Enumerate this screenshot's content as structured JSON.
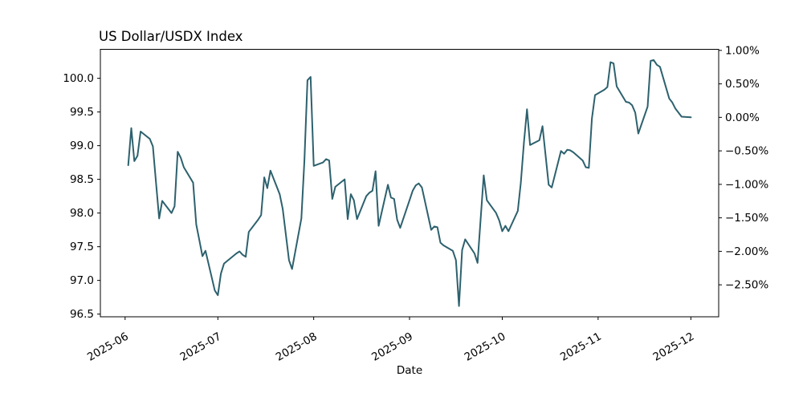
{
  "chart_data": {
    "type": "line",
    "title": "US Dollar/USDX Index",
    "xlabel": "Date",
    "series_name": "USDX Index",
    "line_color": "#2d616e",
    "axis_color": "#000000",
    "background_color": "#ffffff",
    "grid": false,
    "legend": false,
    "ylim": [
      96.46,
      100.43
    ],
    "x_range": [
      "2025-05-24",
      "2025-12-10"
    ],
    "x_ticks": [
      {
        "label": "2025-06",
        "date": "2025-06-01"
      },
      {
        "label": "2025-07",
        "date": "2025-07-01"
      },
      {
        "label": "2025-08",
        "date": "2025-08-01"
      },
      {
        "label": "2025-09",
        "date": "2025-09-01"
      },
      {
        "label": "2025-10",
        "date": "2025-10-01"
      },
      {
        "label": "2025-11",
        "date": "2025-11-01"
      },
      {
        "label": "2025-12",
        "date": "2025-12-01"
      }
    ],
    "y_left_ticks": [
      {
        "label": "100.0",
        "value": 100.0
      },
      {
        "label": "99.5",
        "value": 99.5
      },
      {
        "label": "99.0",
        "value": 99.0
      },
      {
        "label": "98.5",
        "value": 98.5
      },
      {
        "label": "98.0",
        "value": 98.0
      },
      {
        "label": "97.5",
        "value": 97.5
      },
      {
        "label": "97.0",
        "value": 97.0
      },
      {
        "label": "96.5",
        "value": 96.5
      }
    ],
    "y_right_ticks": [
      {
        "label": "1.00%",
        "pct": 1.0
      },
      {
        "label": "0.50%",
        "pct": 0.5
      },
      {
        "label": "0.00%",
        "pct": 0.0
      },
      {
        "label": "−0.50%",
        "pct": -0.5
      },
      {
        "label": "−1.00%",
        "pct": -1.0
      },
      {
        "label": "−1.50%",
        "pct": -1.5
      },
      {
        "label": "−2.00%",
        "pct": -2.0
      },
      {
        "label": "−2.50%",
        "pct": -2.5
      }
    ],
    "dates": [
      "2025-06-02",
      "2025-06-03",
      "2025-06-04",
      "2025-06-05",
      "2025-06-06",
      "2025-06-09",
      "2025-06-10",
      "2025-06-11",
      "2025-06-12",
      "2025-06-13",
      "2025-06-16",
      "2025-06-17",
      "2025-06-18",
      "2025-06-19",
      "2025-06-20",
      "2025-06-23",
      "2025-06-24",
      "2025-06-25",
      "2025-06-26",
      "2025-06-27",
      "2025-06-30",
      "2025-07-01",
      "2025-07-02",
      "2025-07-03",
      "2025-07-07",
      "2025-07-08",
      "2025-07-09",
      "2025-07-10",
      "2025-07-11",
      "2025-07-14",
      "2025-07-15",
      "2025-07-16",
      "2025-07-17",
      "2025-07-18",
      "2025-07-21",
      "2025-07-22",
      "2025-07-23",
      "2025-07-24",
      "2025-07-25",
      "2025-07-28",
      "2025-07-29",
      "2025-07-30",
      "2025-07-31",
      "2025-08-01",
      "2025-08-04",
      "2025-08-05",
      "2025-08-06",
      "2025-08-07",
      "2025-08-08",
      "2025-08-11",
      "2025-08-12",
      "2025-08-13",
      "2025-08-14",
      "2025-08-15",
      "2025-08-18",
      "2025-08-19",
      "2025-08-20",
      "2025-08-21",
      "2025-08-22",
      "2025-08-25",
      "2025-08-26",
      "2025-08-27",
      "2025-08-28",
      "2025-08-29",
      "2025-09-01",
      "2025-09-02",
      "2025-09-03",
      "2025-09-04",
      "2025-09-05",
      "2025-09-08",
      "2025-09-09",
      "2025-09-10",
      "2025-09-11",
      "2025-09-12",
      "2025-09-15",
      "2025-09-16",
      "2025-09-17",
      "2025-09-18",
      "2025-09-19",
      "2025-09-22",
      "2025-09-23",
      "2025-09-24",
      "2025-09-25",
      "2025-09-26",
      "2025-09-29",
      "2025-09-30",
      "2025-10-01",
      "2025-10-02",
      "2025-10-03",
      "2025-10-06",
      "2025-10-07",
      "2025-10-08",
      "2025-10-09",
      "2025-10-10",
      "2025-10-13",
      "2025-10-14",
      "2025-10-15",
      "2025-10-16",
      "2025-10-17",
      "2025-10-20",
      "2025-10-21",
      "2025-10-22",
      "2025-10-23",
      "2025-10-24",
      "2025-10-27",
      "2025-10-28",
      "2025-10-29",
      "2025-10-30",
      "2025-10-31",
      "2025-11-03",
      "2025-11-04",
      "2025-11-05",
      "2025-11-06",
      "2025-11-07",
      "2025-11-10",
      "2025-11-11",
      "2025-11-12",
      "2025-11-13",
      "2025-11-14",
      "2025-11-17",
      "2025-11-18",
      "2025-11-19",
      "2025-11-20",
      "2025-11-21",
      "2025-11-24",
      "2025-11-25",
      "2025-11-26",
      "2025-11-27",
      "2025-11-28",
      "2025-12-01"
    ],
    "values": [
      98.71,
      99.26,
      98.77,
      98.85,
      99.21,
      99.1,
      98.99,
      98.45,
      97.92,
      98.18,
      98.0,
      98.1,
      98.91,
      98.82,
      98.68,
      98.45,
      97.83,
      97.6,
      97.36,
      97.44,
      96.85,
      96.78,
      97.1,
      97.25,
      97.4,
      97.43,
      97.38,
      97.35,
      97.72,
      97.9,
      97.97,
      98.53,
      98.37,
      98.63,
      98.28,
      98.06,
      97.68,
      97.3,
      97.17,
      97.92,
      98.78,
      99.97,
      100.02,
      98.7,
      98.75,
      98.8,
      98.78,
      98.21,
      98.39,
      98.5,
      97.91,
      98.28,
      98.19,
      97.91,
      98.25,
      98.3,
      98.33,
      98.62,
      97.81,
      98.42,
      98.23,
      98.21,
      97.9,
      97.78,
      98.19,
      98.33,
      98.41,
      98.44,
      98.38,
      97.75,
      97.8,
      97.79,
      97.56,
      97.52,
      97.44,
      97.3,
      96.62,
      97.45,
      97.61,
      97.4,
      97.26,
      97.9,
      98.56,
      98.19,
      98.0,
      97.89,
      97.73,
      97.81,
      97.73,
      98.03,
      98.45,
      99.05,
      99.54,
      99.01,
      99.08,
      99.29,
      98.86,
      98.42,
      98.38,
      98.92,
      98.88,
      98.94,
      98.93,
      98.9,
      98.78,
      98.68,
      98.67,
      99.4,
      99.75,
      99.83,
      99.87,
      100.24,
      100.22,
      99.88,
      99.65,
      99.64,
      99.6,
      99.49,
      99.18,
      99.58,
      100.26,
      100.27,
      100.2,
      100.17,
      99.7,
      99.64,
      99.55,
      99.49,
      99.43,
      99.42
    ]
  }
}
